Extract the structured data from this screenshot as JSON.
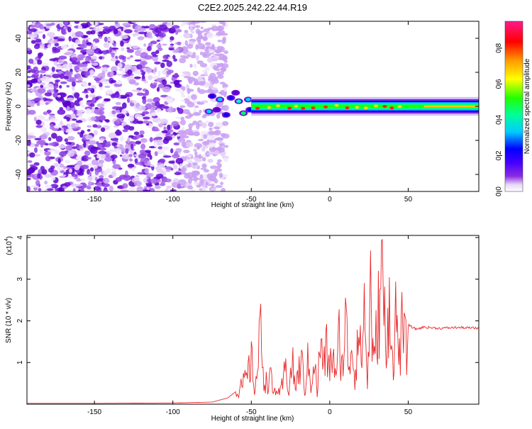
{
  "page_title": "C2E2.2025.242.22.44.R19",
  "chart_data": [
    {
      "type": "heatmap",
      "title": "C2E2.2025.242.22.44.R19",
      "xlabel": "Height of straight line (km)",
      "ylabel": "Frequency (Hz)",
      "xlim": [
        -193,
        95
      ],
      "ylim": [
        -50,
        50
      ],
      "xticks": [
        -150,
        -100,
        -50,
        0,
        50
      ],
      "yticks": [
        -40,
        -20,
        0,
        20,
        40
      ],
      "colorbar": {
        "label": "Normalized spectral amplitude",
        "range": [
          0,
          0.95
        ],
        "ticks": [
          0.0,
          0.2,
          0.4,
          0.6,
          0.8
        ],
        "colormap": [
          "#ffffff",
          "#e8d8f8",
          "#8a2be2",
          "#6600cc",
          "#0000ff",
          "#00ccff",
          "#00ff66",
          "#33ff00",
          "#ffff00",
          "#ff9900",
          "#ff0000",
          "#ff1a8c"
        ]
      },
      "regions": [
        {
          "name": "noise",
          "x_range": [
            -193,
            -78
          ],
          "freq_range": [
            -50,
            50
          ],
          "amplitude": 0.05
        },
        {
          "name": "transition-clusters",
          "x_range": [
            -78,
            -48
          ],
          "freq_range": [
            -8,
            10
          ],
          "amplitude": 0.3
        },
        {
          "name": "signal-band",
          "x_range": [
            -50,
            95
          ],
          "center_freq": 0,
          "halfwidth_hz": 3,
          "peak_amplitude": 0.85
        }
      ]
    },
    {
      "type": "line",
      "xlabel": "Height of straight line (km)",
      "ylabel": "SNR (10 * v/v)",
      "scale_label": "(x10",
      "scale_exponent": "4",
      "scale_suffix": ")",
      "xlim": [
        -193,
        95
      ],
      "ylim": [
        0,
        4.05
      ],
      "xticks": [
        -150,
        -100,
        -50,
        0,
        50
      ],
      "yticks": [
        1,
        2,
        3,
        4
      ],
      "color": "#e8282a",
      "series": [
        {
          "name": "SNR",
          "x": [
            -193,
            -150,
            -100,
            -75,
            -65,
            -60,
            -55,
            -52,
            -50,
            -48,
            -46,
            -44,
            -42,
            -40,
            -38,
            -36,
            -34,
            -32,
            -30,
            -28,
            -26,
            -24,
            -22,
            -20,
            -18,
            -16,
            -14,
            -12,
            -10,
            -8,
            -6,
            -4,
            -2,
            0,
            2,
            4,
            6,
            8,
            10,
            12,
            14,
            16,
            18,
            20,
            22,
            24,
            26,
            28,
            30,
            32,
            34,
            36,
            38,
            40,
            42,
            44,
            46,
            48,
            50,
            55,
            60,
            70,
            80,
            90,
            95
          ],
          "values": [
            0.02,
            0.02,
            0.03,
            0.05,
            0.15,
            0.3,
            0.6,
            0.9,
            1.3,
            0.5,
            1.0,
            2.3,
            0.8,
            0.6,
            0.9,
            0.3,
            0.5,
            0.25,
            0.6,
            1.1,
            0.4,
            1.3,
            0.5,
            0.9,
            1.3,
            0.4,
            1.2,
            0.6,
            1.4,
            0.3,
            1.9,
            1.1,
            1.6,
            1.0,
            1.7,
            0.6,
            2.0,
            1.1,
            2.5,
            1.2,
            1.8,
            0.8,
            2.3,
            1.3,
            2.9,
            0.6,
            3.5,
            1.0,
            2.2,
            3.2,
            4.1,
            0.8,
            3.8,
            1.2,
            2.6,
            1.5,
            2.2,
            1.7,
            1.9,
            1.8,
            1.85,
            1.82,
            1.84,
            1.83,
            1.82
          ]
        }
      ]
    }
  ]
}
